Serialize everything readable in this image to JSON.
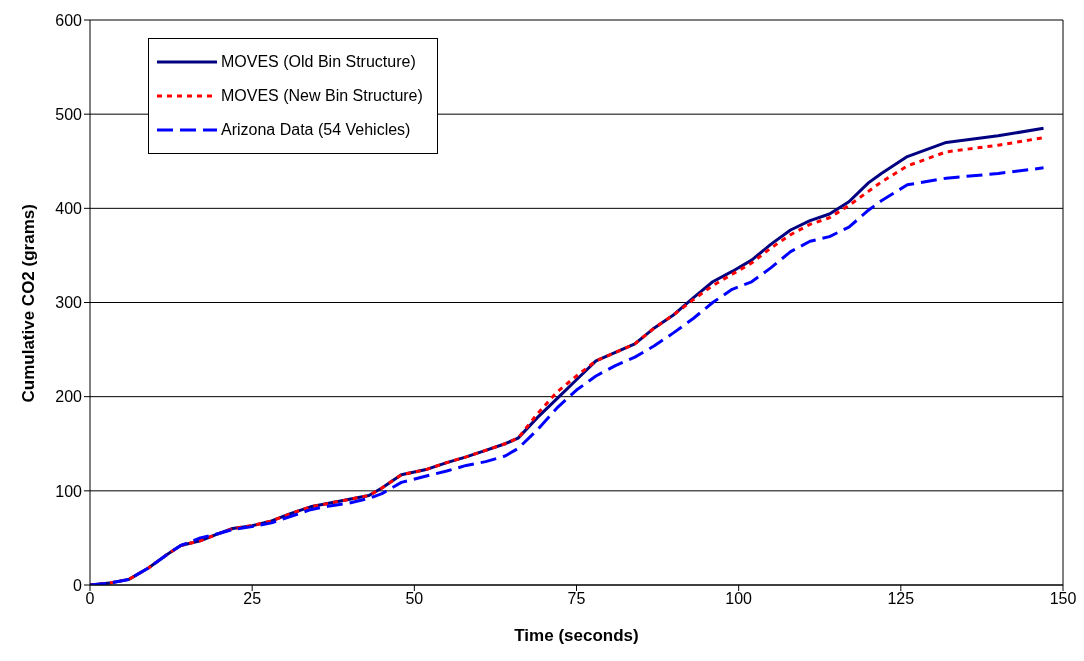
{
  "chart_data": {
    "type": "line",
    "xlabel": "Time (seconds)",
    "ylabel": "Cumulative CO2 (grams)",
    "x": [
      0,
      3,
      6,
      9,
      12,
      14,
      17,
      20,
      22,
      25,
      28,
      31,
      34,
      37,
      40,
      43,
      45,
      48,
      52,
      55,
      58,
      61,
      64,
      66,
      69,
      72,
      75,
      78,
      81,
      84,
      87,
      90,
      93,
      96,
      99,
      102,
      105,
      108,
      111,
      114,
      117,
      120,
      122,
      126,
      132,
      140,
      147
    ],
    "series": [
      {
        "name": "MOVES (Old Bin Structure)",
        "color": "#000080",
        "line_style": "solid",
        "values": [
          0,
          2,
          6,
          18,
          33,
          42,
          47,
          55,
          60,
          63,
          68,
          76,
          83,
          87,
          91,
          95,
          103,
          117,
          123,
          130,
          136,
          143,
          150,
          156,
          178,
          198,
          218,
          238,
          247,
          256,
          273,
          287,
          305,
          322,
          333,
          345,
          362,
          377,
          387,
          394,
          407,
          427,
          437,
          455,
          470,
          477,
          485
        ]
      },
      {
        "name": "MOVES (New Bin Structure)",
        "color": "#ff0000",
        "line_style": "dotted",
        "values": [
          0,
          2,
          6,
          18,
          33,
          42,
          47,
          55,
          60,
          63,
          68,
          76,
          83,
          87,
          91,
          95,
          103,
          117,
          123,
          130,
          136,
          143,
          150,
          156,
          182,
          205,
          222,
          238,
          247,
          256,
          273,
          287,
          303,
          318,
          330,
          342,
          358,
          372,
          383,
          390,
          403,
          418,
          428,
          445,
          460,
          467,
          475
        ]
      },
      {
        "name": "Arizona Data (54 Vehicles)",
        "color": "#0000ff",
        "line_style": "dashed",
        "values": [
          0,
          2,
          6,
          18,
          33,
          42,
          50,
          55,
          59,
          62,
          66,
          73,
          80,
          84,
          87,
          92,
          97,
          109,
          116,
          121,
          127,
          131,
          137,
          145,
          165,
          188,
          207,
          222,
          233,
          242,
          254,
          268,
          283,
          300,
          314,
          322,
          337,
          354,
          365,
          370,
          380,
          398,
          408,
          425,
          432,
          437,
          443
        ]
      }
    ],
    "xlim": [
      0,
      150
    ],
    "xticks": [
      0,
      25,
      50,
      75,
      100,
      125,
      150
    ],
    "ylim": [
      0,
      600
    ],
    "yticks": [
      0,
      100,
      200,
      300,
      400,
      500,
      600
    ],
    "grid": "y",
    "legend": "top left",
    "marker": "none"
  }
}
